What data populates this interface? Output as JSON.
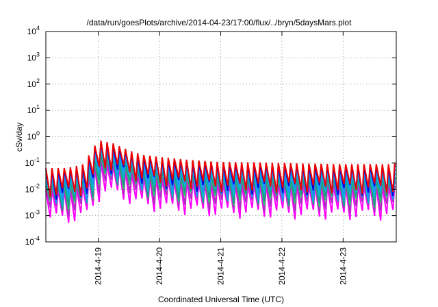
{
  "chart_data": {
    "type": "line",
    "title": "/data/run/goesPlots/archive/2014-04-23/17:00/flux/../bryn/5daysMars.plot",
    "xlabel": "Coordinated Universal Time (UTC)",
    "ylabel": "cSv/day",
    "yscale": "log",
    "ylim": [
      0.0001,
      10000
    ],
    "xlim": [
      "2014-04-18 03:24",
      "2014-04-23 20:51"
    ],
    "grid": true,
    "legend": "none",
    "x_ticks": [
      "2014-4-19",
      "2014-4-20",
      "2014-4-21",
      "2014-4-22",
      "2014-4-23"
    ],
    "y_ticks": [
      {
        "base": "10",
        "exp": "-4"
      },
      {
        "base": "10",
        "exp": "-3"
      },
      {
        "base": "10",
        "exp": "-2"
      },
      {
        "base": "10",
        "exp": "-1"
      },
      {
        "base": "10",
        "exp": "0"
      },
      {
        "base": "10",
        "exp": "1"
      },
      {
        "base": "10",
        "exp": "2"
      },
      {
        "base": "10",
        "exp": "3"
      },
      {
        "base": "10",
        "exp": "4"
      }
    ],
    "sample_interval_hours": 2.4,
    "sawtooth_peak_envelope_per_day": [
      {
        "date": "2014-04-18 06:00",
        "peak": 0.065
      },
      {
        "date": "2014-04-18 12:00",
        "peak": 0.065
      },
      {
        "date": "2014-04-18 18:00",
        "peak": 0.09
      },
      {
        "date": "2014-04-19 00:00",
        "peak": 0.75
      },
      {
        "date": "2014-04-19 06:00",
        "peak": 0.55
      },
      {
        "date": "2014-04-19 12:00",
        "peak": 0.3
      },
      {
        "date": "2014-04-19 18:00",
        "peak": 0.2
      },
      {
        "date": "2014-04-20 00:00",
        "peak": 0.17
      },
      {
        "date": "2014-04-20 12:00",
        "peak": 0.13
      },
      {
        "date": "2014-04-21 00:00",
        "peak": 0.11
      },
      {
        "date": "2014-04-22 00:00",
        "peak": 0.1
      },
      {
        "date": "2014-04-23 00:00",
        "peak": 0.09
      },
      {
        "date": "2014-04-23 20:00",
        "peak": 0.09
      }
    ],
    "series": [
      {
        "color": "#ee0000",
        "peak_factor": 1.0,
        "trough_factor": 0.13
      },
      {
        "color": "#0000dd",
        "peak_factor": 0.82,
        "trough_factor": 0.11
      },
      {
        "color": "#1f8fff",
        "peak_factor": 0.6,
        "trough_factor": 0.08
      },
      {
        "color": "#00b8c8",
        "peak_factor": 0.42,
        "trough_factor": 0.06
      },
      {
        "color": "#1a9a8a",
        "peak_factor": 0.3,
        "trough_factor": 0.045
      },
      {
        "color": "#22cc66",
        "peak_factor": 0.26,
        "trough_factor": 0.04
      },
      {
        "color": "#aa33bb",
        "peak_factor": 0.2,
        "trough_factor": 0.025
      },
      {
        "color": "#ff00ff",
        "peak_factor": 0.14,
        "trough_factor": 0.013
      }
    ]
  }
}
